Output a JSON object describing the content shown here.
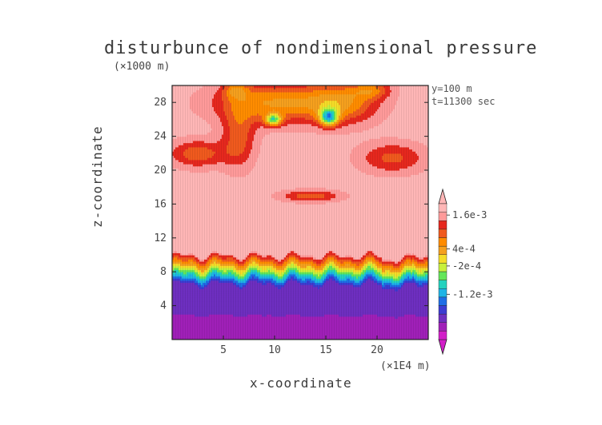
{
  "chart_data": {
    "type": "heatmap",
    "title": "disturbunce of nondimensional pressure",
    "xlabel": "x-coordinate",
    "ylabel": "z-coordinate",
    "x_unit": "(×1E4 m)",
    "y_unit": "(×1000 m)",
    "xlim": [
      0,
      25
    ],
    "ylim": [
      0,
      30
    ],
    "x_ticks": [
      5,
      10,
      15,
      20
    ],
    "y_ticks": [
      4,
      8,
      12,
      16,
      20,
      24,
      28
    ],
    "annotations": [
      "y=100 m",
      "t=11300 sec"
    ],
    "colorbar": {
      "labels": [
        {
          "text": "1.6e-3",
          "value": 0.0016
        },
        {
          "text": "4e-4",
          "value": 0.0004
        },
        {
          "text": "-2e-4",
          "value": -0.0002
        },
        {
          "text": "-1.2e-3",
          "value": -0.0012
        }
      ],
      "colors": [
        "#d21ec8",
        "#a020b8",
        "#6e2fc0",
        "#3c3cd2",
        "#1e6ee6",
        "#1eb4e6",
        "#23d2be",
        "#64e65a",
        "#c8f03c",
        "#f5dc28",
        "#f5a01e",
        "#ff8c00",
        "#f05a1e",
        "#e6281e",
        "#ff9a9a",
        "#ffb6b6"
      ]
    },
    "regions": [
      {
        "zone": "z 0 to 7",
        "value": "strong negative (about -1.2e-3 and below)"
      },
      {
        "zone": "z 7 to 10",
        "value": "transition band, negative to positive"
      },
      {
        "zone": "z 10 to 30",
        "value": "background positive (above 1.6e-3)"
      },
      {
        "zone": "x 9 to 11, z 26",
        "value": "negative blob"
      },
      {
        "zone": "x 15 to 16, z 26",
        "value": "negative blob"
      }
    ]
  }
}
